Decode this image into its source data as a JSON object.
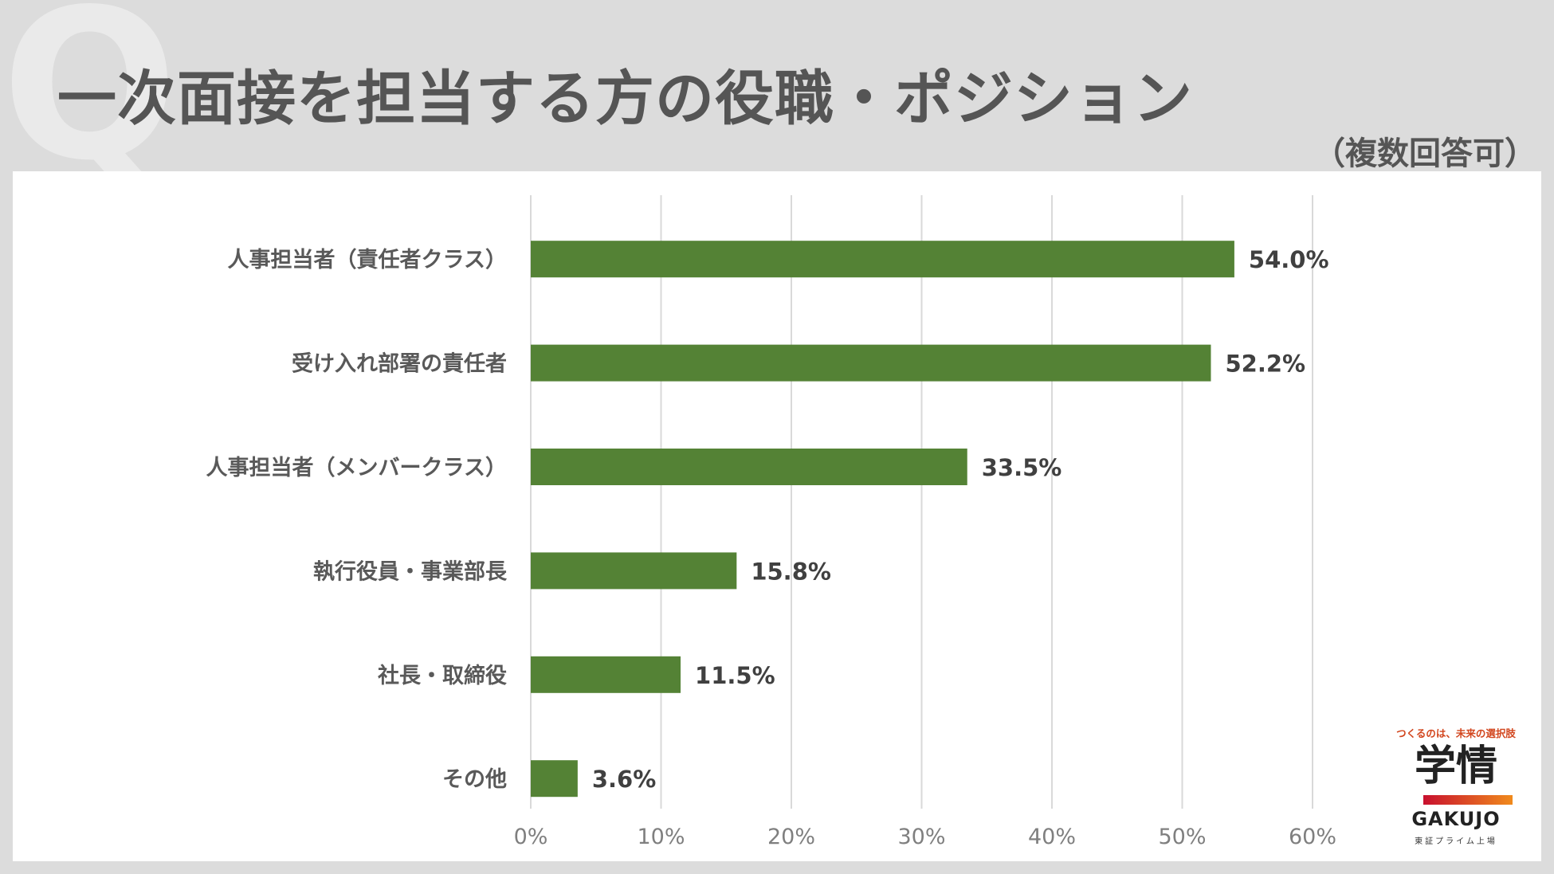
{
  "header": {
    "q_mark": "Q",
    "title": "一次面接を担当する方の役職・ポジション",
    "subtitle": "（複数回答可）"
  },
  "chart_data": {
    "type": "bar",
    "orientation": "horizontal",
    "title": "一次面接を担当する方の役職・ポジション",
    "subtitle": "（複数回答可）",
    "categories": [
      "人事担当者（責任者クラス）",
      "受け入れ部署の責任者",
      "人事担当者（メンバークラス）",
      "執行役員・事業部長",
      "社長・取締役",
      "その他"
    ],
    "values": [
      54.0,
      52.2,
      33.5,
      15.8,
      11.5,
      3.6
    ],
    "value_labels": [
      "54.0%",
      "52.2%",
      "33.5%",
      "15.8%",
      "11.5%",
      "3.6%"
    ],
    "xlim": [
      0,
      60
    ],
    "ticks": [
      0,
      10,
      20,
      30,
      40,
      50,
      60
    ],
    "tick_labels": [
      "0%",
      "10%",
      "20%",
      "30%",
      "40%",
      "50%",
      "60%"
    ],
    "grid": true,
    "bar_color": "#548235"
  },
  "logo": {
    "tagline": "つくるのは、未来の選択肢",
    "mark": "学情",
    "wordmark": "GAKUJO",
    "note": "東証プライム上場"
  },
  "colors": {
    "background": "#dcdcdc",
    "panel": "#ffffff",
    "title": "#555555",
    "gridline": "#d9d9d9"
  }
}
